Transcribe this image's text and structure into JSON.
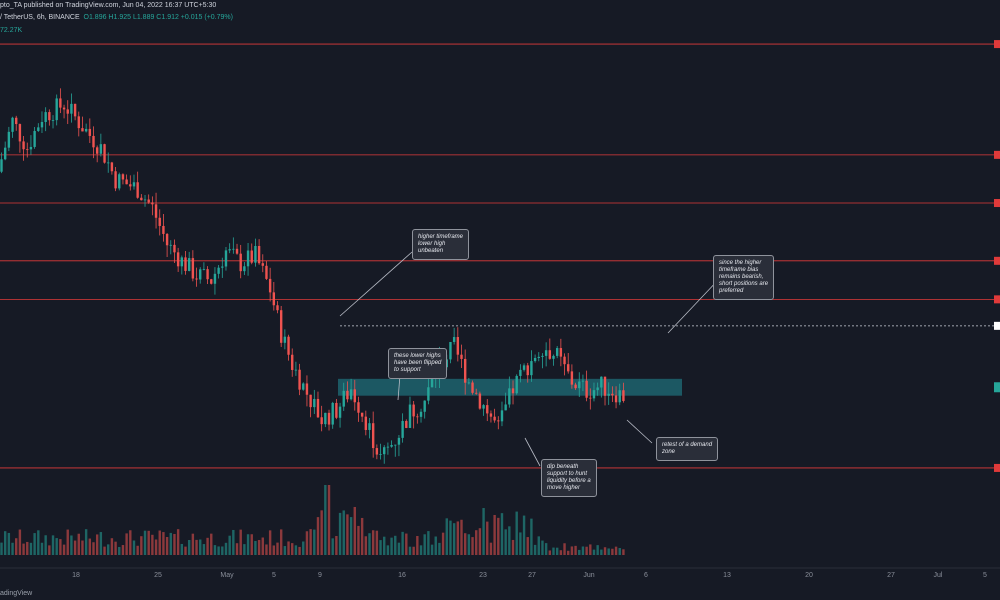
{
  "header": {
    "line1_prefix": "pto_TA published on TradingView.com, Jun 04, 2022 16:37 UTC+5:30",
    "line2_symbol": "/ TetherUS, 6h, BINANCE",
    "ohlc": "O1.896  H1.925  L1.889  C1.912  +0.015 (+0.79%)",
    "volume": "72.27K"
  },
  "footer": {
    "brand": "adingView"
  },
  "colors": {
    "up": "#26a69a",
    "down": "#ef5350",
    "bg": "#161a25",
    "zone": "#1f6e78",
    "level": "#e03a3a"
  },
  "annotations": [
    {
      "id": "lower-high",
      "text": "higher timeframe\nlower high\nunbeaten"
    },
    {
      "id": "flipped",
      "text": "these lower highs\nhave been flipped\nto support"
    },
    {
      "id": "bias",
      "text": "since the higher\ntimeframe bias\nremains bearish,\nshort positions are\npreferred"
    },
    {
      "id": "retest",
      "text": "retest of a demand\nzone"
    },
    {
      "id": "dip",
      "text": "dip beneath\nsupport to hunt\nliquidity before a\nmove higher"
    }
  ],
  "chart_data": {
    "type": "candlestick",
    "x_tick_labels": [
      "18",
      "25",
      "May",
      "5",
      "9",
      "16",
      "23",
      "27",
      "Jun",
      "6",
      "13",
      "20",
      "27",
      "Jul",
      "5"
    ],
    "horizontal_levels": [
      3.38,
      2.92,
      2.72,
      2.48,
      2.32
    ],
    "support_level": 1.62,
    "dotted_level": 2.21,
    "demand_zone": [
      1.92,
      1.99
    ],
    "price_path_keypoints": [
      [
        0,
        2.85
      ],
      [
        4,
        3.06
      ],
      [
        8,
        2.95
      ],
      [
        12,
        3.08
      ],
      [
        18,
        3.13
      ],
      [
        24,
        3.02
      ],
      [
        28,
        2.95
      ],
      [
        32,
        2.82
      ],
      [
        38,
        2.78
      ],
      [
        42,
        2.7
      ],
      [
        46,
        2.55
      ],
      [
        50,
        2.48
      ],
      [
        54,
        2.42
      ],
      [
        58,
        2.4
      ],
      [
        62,
        2.52
      ],
      [
        66,
        2.47
      ],
      [
        70,
        2.5
      ],
      [
        74,
        2.36
      ],
      [
        77,
        2.18
      ],
      [
        80,
        2.05
      ],
      [
        84,
        1.93
      ],
      [
        88,
        1.82
      ],
      [
        92,
        1.86
      ],
      [
        96,
        1.95
      ],
      [
        100,
        1.82
      ],
      [
        104,
        1.66
      ],
      [
        108,
        1.74
      ],
      [
        112,
        1.85
      ],
      [
        116,
        1.9
      ],
      [
        120,
        2.05
      ],
      [
        124,
        2.12
      ],
      [
        128,
        1.98
      ],
      [
        132,
        1.88
      ],
      [
        136,
        1.78
      ],
      [
        140,
        1.95
      ],
      [
        144,
        2.05
      ],
      [
        148,
        2.13
      ],
      [
        152,
        2.08
      ],
      [
        156,
        1.98
      ],
      [
        160,
        1.94
      ],
      [
        164,
        1.96
      ],
      [
        170,
        1.92
      ]
    ],
    "volume_note": "volume bars along bottom, spike near May 9-10"
  }
}
